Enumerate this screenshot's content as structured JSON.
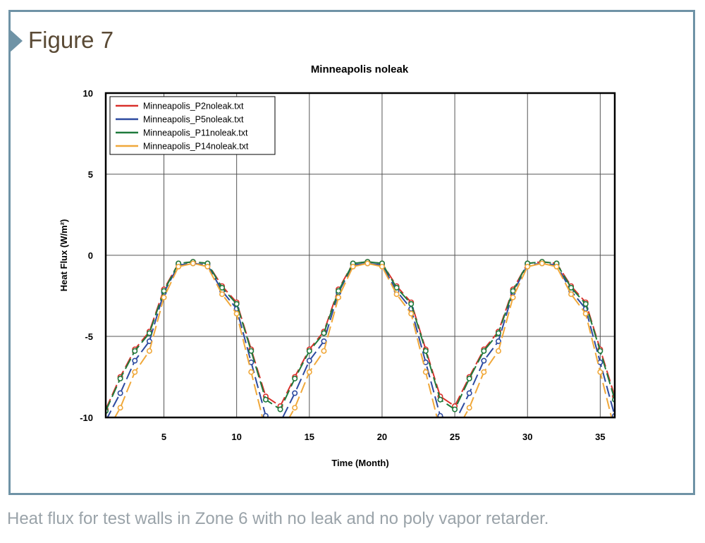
{
  "figure_label": "Figure 7",
  "caption": "Heat flux for test walls in Zone 6 with no leak and no poly vapor retarder.",
  "chart_data": {
    "type": "line",
    "title": "Minneapolis noleak",
    "xlabel": "Time (Month)",
    "ylabel": "Heat Flux (W/m²)",
    "xlim": [
      1,
      36
    ],
    "ylim": [
      -10,
      10
    ],
    "xticks": [
      5,
      10,
      15,
      20,
      25,
      30,
      35
    ],
    "yticks": [
      10,
      5,
      0,
      -5,
      -10
    ],
    "grid": true,
    "legend_position": "top-left",
    "x": [
      1,
      2,
      3,
      4,
      5,
      6,
      7,
      8,
      9,
      10,
      11,
      12,
      13,
      14,
      15,
      16,
      17,
      18,
      19,
      20,
      21,
      22,
      23,
      24,
      25,
      26,
      27,
      28,
      29,
      30,
      31,
      32,
      33,
      34,
      35,
      36
    ],
    "series": [
      {
        "name": "Minneapolis_P2noleak.txt",
        "color": "#d9312b",
        "values": [
          -9.5,
          -7.5,
          -5.8,
          -4.7,
          -2.1,
          -0.5,
          -0.4,
          -0.5,
          -1.9,
          -2.9,
          -5.8,
          -8.7,
          -9.3,
          -7.5,
          -5.8,
          -4.7,
          -2.1,
          -0.5,
          -0.4,
          -0.5,
          -1.9,
          -2.9,
          -5.8,
          -8.7,
          -9.3,
          -7.5,
          -5.8,
          -4.7,
          -2.1,
          -0.5,
          -0.4,
          -0.5,
          -1.9,
          -2.9,
          -5.8,
          -8.7
        ]
      },
      {
        "name": "Minneapolis_P5noleak.txt",
        "color": "#2d4aa0",
        "values": [
          -10.2,
          -8.5,
          -6.5,
          -5.3,
          -2.3,
          -0.6,
          -0.5,
          -0.6,
          -2.2,
          -3.3,
          -6.6,
          -9.9,
          -10.3,
          -8.5,
          -6.5,
          -5.3,
          -2.3,
          -0.6,
          -0.5,
          -0.6,
          -2.2,
          -3.3,
          -6.6,
          -9.9,
          -10.3,
          -8.5,
          -6.5,
          -5.3,
          -2.3,
          -0.6,
          -0.5,
          -0.6,
          -2.2,
          -3.3,
          -6.6,
          -9.9
        ]
      },
      {
        "name": "Minneapolis_P11noleak.txt",
        "color": "#1f7a3c",
        "values": [
          -9.6,
          -7.6,
          -5.9,
          -4.8,
          -2.2,
          -0.5,
          -0.4,
          -0.5,
          -2.0,
          -3.0,
          -5.9,
          -8.9,
          -9.5,
          -7.6,
          -5.9,
          -4.8,
          -2.2,
          -0.5,
          -0.4,
          -0.5,
          -2.0,
          -3.0,
          -5.9,
          -8.9,
          -9.5,
          -7.6,
          -5.9,
          -4.8,
          -2.2,
          -0.5,
          -0.4,
          -0.5,
          -2.0,
          -3.0,
          -5.9,
          -8.9
        ]
      },
      {
        "name": "Minneapolis_P14noleak.txt",
        "color": "#f0a83a",
        "values": [
          -11.0,
          -9.4,
          -7.2,
          -5.9,
          -2.6,
          -0.7,
          -0.5,
          -0.7,
          -2.4,
          -3.6,
          -7.2,
          -10.8,
          -11.0,
          -9.4,
          -7.2,
          -5.9,
          -2.6,
          -0.7,
          -0.5,
          -0.7,
          -2.4,
          -3.6,
          -7.2,
          -10.8,
          -11.0,
          -9.4,
          -7.2,
          -5.9,
          -2.6,
          -0.7,
          -0.5,
          -0.7,
          -2.4,
          -3.6,
          -7.2,
          -10.8
        ]
      }
    ]
  }
}
